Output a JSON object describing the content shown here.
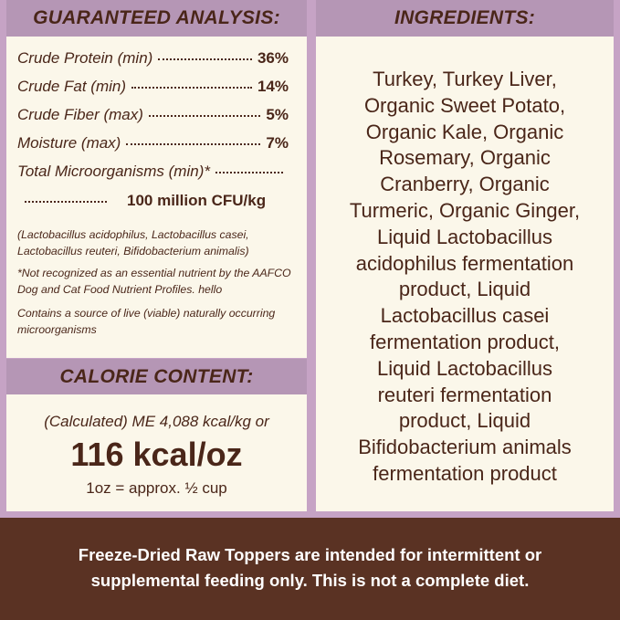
{
  "guaranteed_analysis": {
    "title": "GUARANTEED ANALYSIS:",
    "rows": [
      {
        "label": "Crude Protein (min)",
        "value": "36%"
      },
      {
        "label": "Crude Fat (min)",
        "value": "14%"
      },
      {
        "label": "Crude Fiber (max)",
        "value": "5%"
      },
      {
        "label": "Moisture (max)",
        "value": "7%"
      },
      {
        "label": "Total Microorganisms (min)*",
        "value": "100 million CFU/kg"
      }
    ],
    "notes": [
      "(Lactobacillus acidophilus, Lactobacillus casei, Lactobacillus reuteri, Bifidobacterium animalis)",
      "*Not recognized as an essential nutrient by the AAFCO Dog and Cat Food Nutrient Profiles. hello",
      "Contains a source of live (viable) naturally occurring microorganisms"
    ]
  },
  "calorie_content": {
    "title": "CALORIE CONTENT:",
    "calculated": "(Calculated) ME 4,088 kcal/kg or",
    "per_oz": "116 kcal/oz",
    "approx": "1oz = approx. ½ cup"
  },
  "ingredients": {
    "title": "INGREDIENTS:",
    "lines": [
      "Turkey, Turkey Liver,",
      "Organic Sweet Potato,",
      "Organic Kale, Organic",
      "Rosemary, Organic",
      "Cranberry, Organic",
      "Turmeric, Organic Ginger,",
      "Liquid Lactobacillus",
      "acidophilus fermentation",
      "product, Liquid",
      "Lactobacillus casei",
      "fermentation product,",
      "Liquid Lactobacillus",
      "reuteri fermentation",
      "product, Liquid",
      "Bifidobacterium animals",
      "fermentation product"
    ]
  },
  "footer": {
    "text": "Freeze-Dried Raw Toppers are intended for intermittent or supplemental feeding only. This is not a complete diet."
  }
}
